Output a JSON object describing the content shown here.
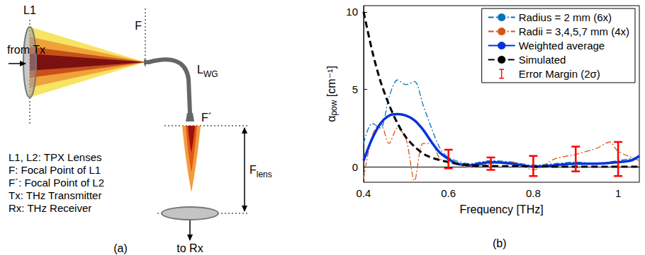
{
  "diagram": {
    "panel": "(a)",
    "input": "from Tx",
    "output": "to Rx",
    "lens1": "L1",
    "focus1": "F",
    "focus2": "F´",
    "waveguide": {
      "main": "L",
      "sub": "WG"
    },
    "focal_length": {
      "main": "F",
      "sub": "lens"
    },
    "key": [
      "L1, L2: TPX Lenses",
      "F: Focal Point of L1",
      "F´: Focal Point of L2",
      "Tx: THz Transmitter",
      "Rx: THz Receiver"
    ]
  },
  "chart_data": {
    "type": "line",
    "panel": "(b)",
    "xlabel": "Frequency [THz]",
    "ylabel": {
      "symbol": "α",
      "subscript": "pow",
      "unit": "[cm⁻¹]"
    },
    "xlim": [
      0.4,
      1.05
    ],
    "xticks": [
      0.4,
      0.6,
      0.8,
      1
    ],
    "ylim": [
      -1,
      10.4
    ],
    "yticks": [
      0,
      5,
      10
    ],
    "grid": false,
    "legend": "upper right",
    "series": [
      {
        "name": "Radius = 2 mm (6x)",
        "color": "#0072bd",
        "line_style": "dashdot",
        "x": [
          0.4,
          0.42,
          0.44,
          0.46,
          0.48,
          0.5,
          0.52,
          0.54,
          0.56,
          0.58,
          0.6,
          0.65,
          0.7,
          0.75,
          0.8,
          0.85,
          0.9,
          0.95,
          1.0,
          1.05
        ],
        "values": [
          1.5,
          2.8,
          2.5,
          4.5,
          5.6,
          5.3,
          5.5,
          4.0,
          2.5,
          1.2,
          0.6,
          0.2,
          0.4,
          0.3,
          0.1,
          0.2,
          0.3,
          0.2,
          0.4,
          0.6
        ]
      },
      {
        "name": "Radii = 3,4,5,7 mm (4x)",
        "color": "#d95319",
        "line_style": "dashdot",
        "x": [
          0.4,
          0.42,
          0.44,
          0.46,
          0.48,
          0.5,
          0.52,
          0.54,
          0.56,
          0.58,
          0.6,
          0.65,
          0.7,
          0.75,
          0.8,
          0.85,
          0.9,
          0.95,
          0.98,
          1.0,
          1.05
        ],
        "values": [
          -0.8,
          2.0,
          2.8,
          1.5,
          2.5,
          1.8,
          -0.9,
          1.5,
          1.5,
          0.5,
          0.3,
          0.0,
          0.2,
          0.3,
          -0.2,
          0.5,
          0.8,
          1.2,
          1.6,
          1.0,
          0.4
        ]
      },
      {
        "name": "Weighted average",
        "color": "#0033dd",
        "line_style": "solid",
        "x": [
          0.4,
          0.42,
          0.44,
          0.46,
          0.48,
          0.5,
          0.52,
          0.54,
          0.56,
          0.58,
          0.6,
          0.62,
          0.65,
          0.7,
          0.75,
          0.8,
          0.85,
          0.9,
          0.95,
          1.0,
          1.03,
          1.05
        ],
        "values": [
          0.4,
          1.8,
          2.8,
          3.3,
          3.4,
          3.3,
          3.0,
          2.4,
          1.6,
          0.9,
          0.5,
          0.2,
          0.1,
          0.3,
          0.2,
          0.0,
          0.1,
          0.2,
          0.2,
          0.3,
          0.4,
          0.7
        ]
      },
      {
        "name": "Simulated",
        "color": "#000000",
        "line_style": "dashed",
        "x": [
          0.4,
          0.42,
          0.44,
          0.46,
          0.48,
          0.5,
          0.52,
          0.55,
          0.6,
          0.65,
          0.7,
          0.8,
          0.9,
          1.05
        ],
        "values": [
          10,
          7.5,
          5.5,
          4.0,
          2.8,
          1.9,
          1.3,
          0.7,
          0.3,
          0.1,
          0.05,
          0.02,
          0,
          0
        ]
      },
      {
        "name": "Error Margin (2σ)",
        "type": "errorbar",
        "color": "#ff0000",
        "x": [
          0.6,
          0.7,
          0.8,
          0.9,
          1.0
        ],
        "low": [
          -0.1,
          -0.2,
          -0.6,
          -0.3,
          -0.6
        ],
        "high": [
          1.1,
          0.6,
          0.7,
          1.3,
          1.6
        ]
      }
    ]
  }
}
